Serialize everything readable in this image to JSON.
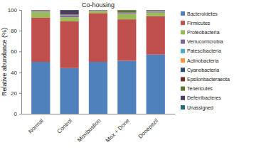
{
  "chart_data": {
    "type": "bar",
    "stacked": true,
    "title": "Co-housing",
    "y_label": "Relative abundance (%)",
    "categories": [
      "Normal",
      "Control",
      "Moxibustion",
      "Mox + Done",
      "Donepezil"
    ],
    "series": [
      {
        "name": "Bacteroidetes",
        "color": "#4f81bd",
        "values": [
          50,
          44,
          50,
          51,
          57
        ]
      },
      {
        "name": "Firmicutes",
        "color": "#c0504d",
        "values": [
          42.5,
          45,
          47,
          40,
          37
        ]
      },
      {
        "name": "Proteobacteria",
        "color": "#9bbb59",
        "values": [
          5.5,
          4,
          2,
          5,
          3.5
        ]
      },
      {
        "name": "Verrucomicrobia",
        "color": "#8064a2",
        "values": [
          0.3,
          1.5,
          0.2,
          0.5,
          0.5
        ]
      },
      {
        "name": "Patescibacteria",
        "color": "#4bacc6",
        "values": [
          0.3,
          0.3,
          0.1,
          0.3,
          0.3
        ]
      },
      {
        "name": "Actinobacteria",
        "color": "#f79646",
        "values": [
          0.3,
          0.2,
          0.1,
          0.2,
          0.2
        ]
      },
      {
        "name": "Cyanobacteria",
        "color": "#2c4d75",
        "values": [
          0.2,
          0.2,
          0.1,
          0.2,
          0.2
        ]
      },
      {
        "name": "Epsilonbacteraeota",
        "color": "#772c2a",
        "values": [
          0.5,
          0.3,
          0.2,
          0.3,
          0.3
        ]
      },
      {
        "name": "Tenericutes",
        "color": "#5f7530",
        "values": [
          0.2,
          0.2,
          0.1,
          2.2,
          0.5
        ]
      },
      {
        "name": "Deferribacteres",
        "color": "#4d3b62",
        "values": [
          0.1,
          4.2,
          0.1,
          0.2,
          0.4
        ]
      },
      {
        "name": "Unassigned",
        "color": "#276a7c",
        "values": [
          0.1,
          0.1,
          0.1,
          0.1,
          0.1
        ]
      }
    ],
    "ylim": [
      0,
      100
    ],
    "yticks": [
      0,
      20,
      40,
      60,
      80,
      100
    ],
    "grid": false,
    "legend": "right"
  }
}
